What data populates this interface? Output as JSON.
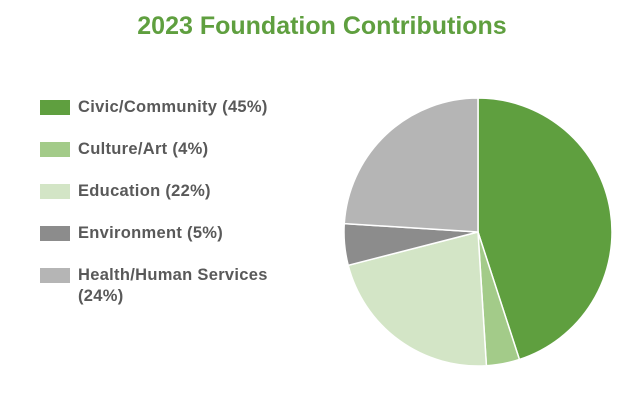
{
  "chart_data": {
    "type": "pie",
    "title": "2023 Foundation Contributions",
    "legend_position": "left",
    "slices": [
      {
        "name": "Civic/Community (45%)",
        "value": 45,
        "color": "#5f9f3f"
      },
      {
        "name": "Culture/Art (4%)",
        "value": 4,
        "color": "#a3cb89"
      },
      {
        "name": "Education (22%)",
        "value": 22,
        "color": "#d3e5c6"
      },
      {
        "name": "Environment (5%)",
        "value": 5,
        "color": "#8c8c8c"
      },
      {
        "name": "Health/Human Services (24%)",
        "value": 24,
        "color": "#b5b5b5"
      }
    ]
  }
}
